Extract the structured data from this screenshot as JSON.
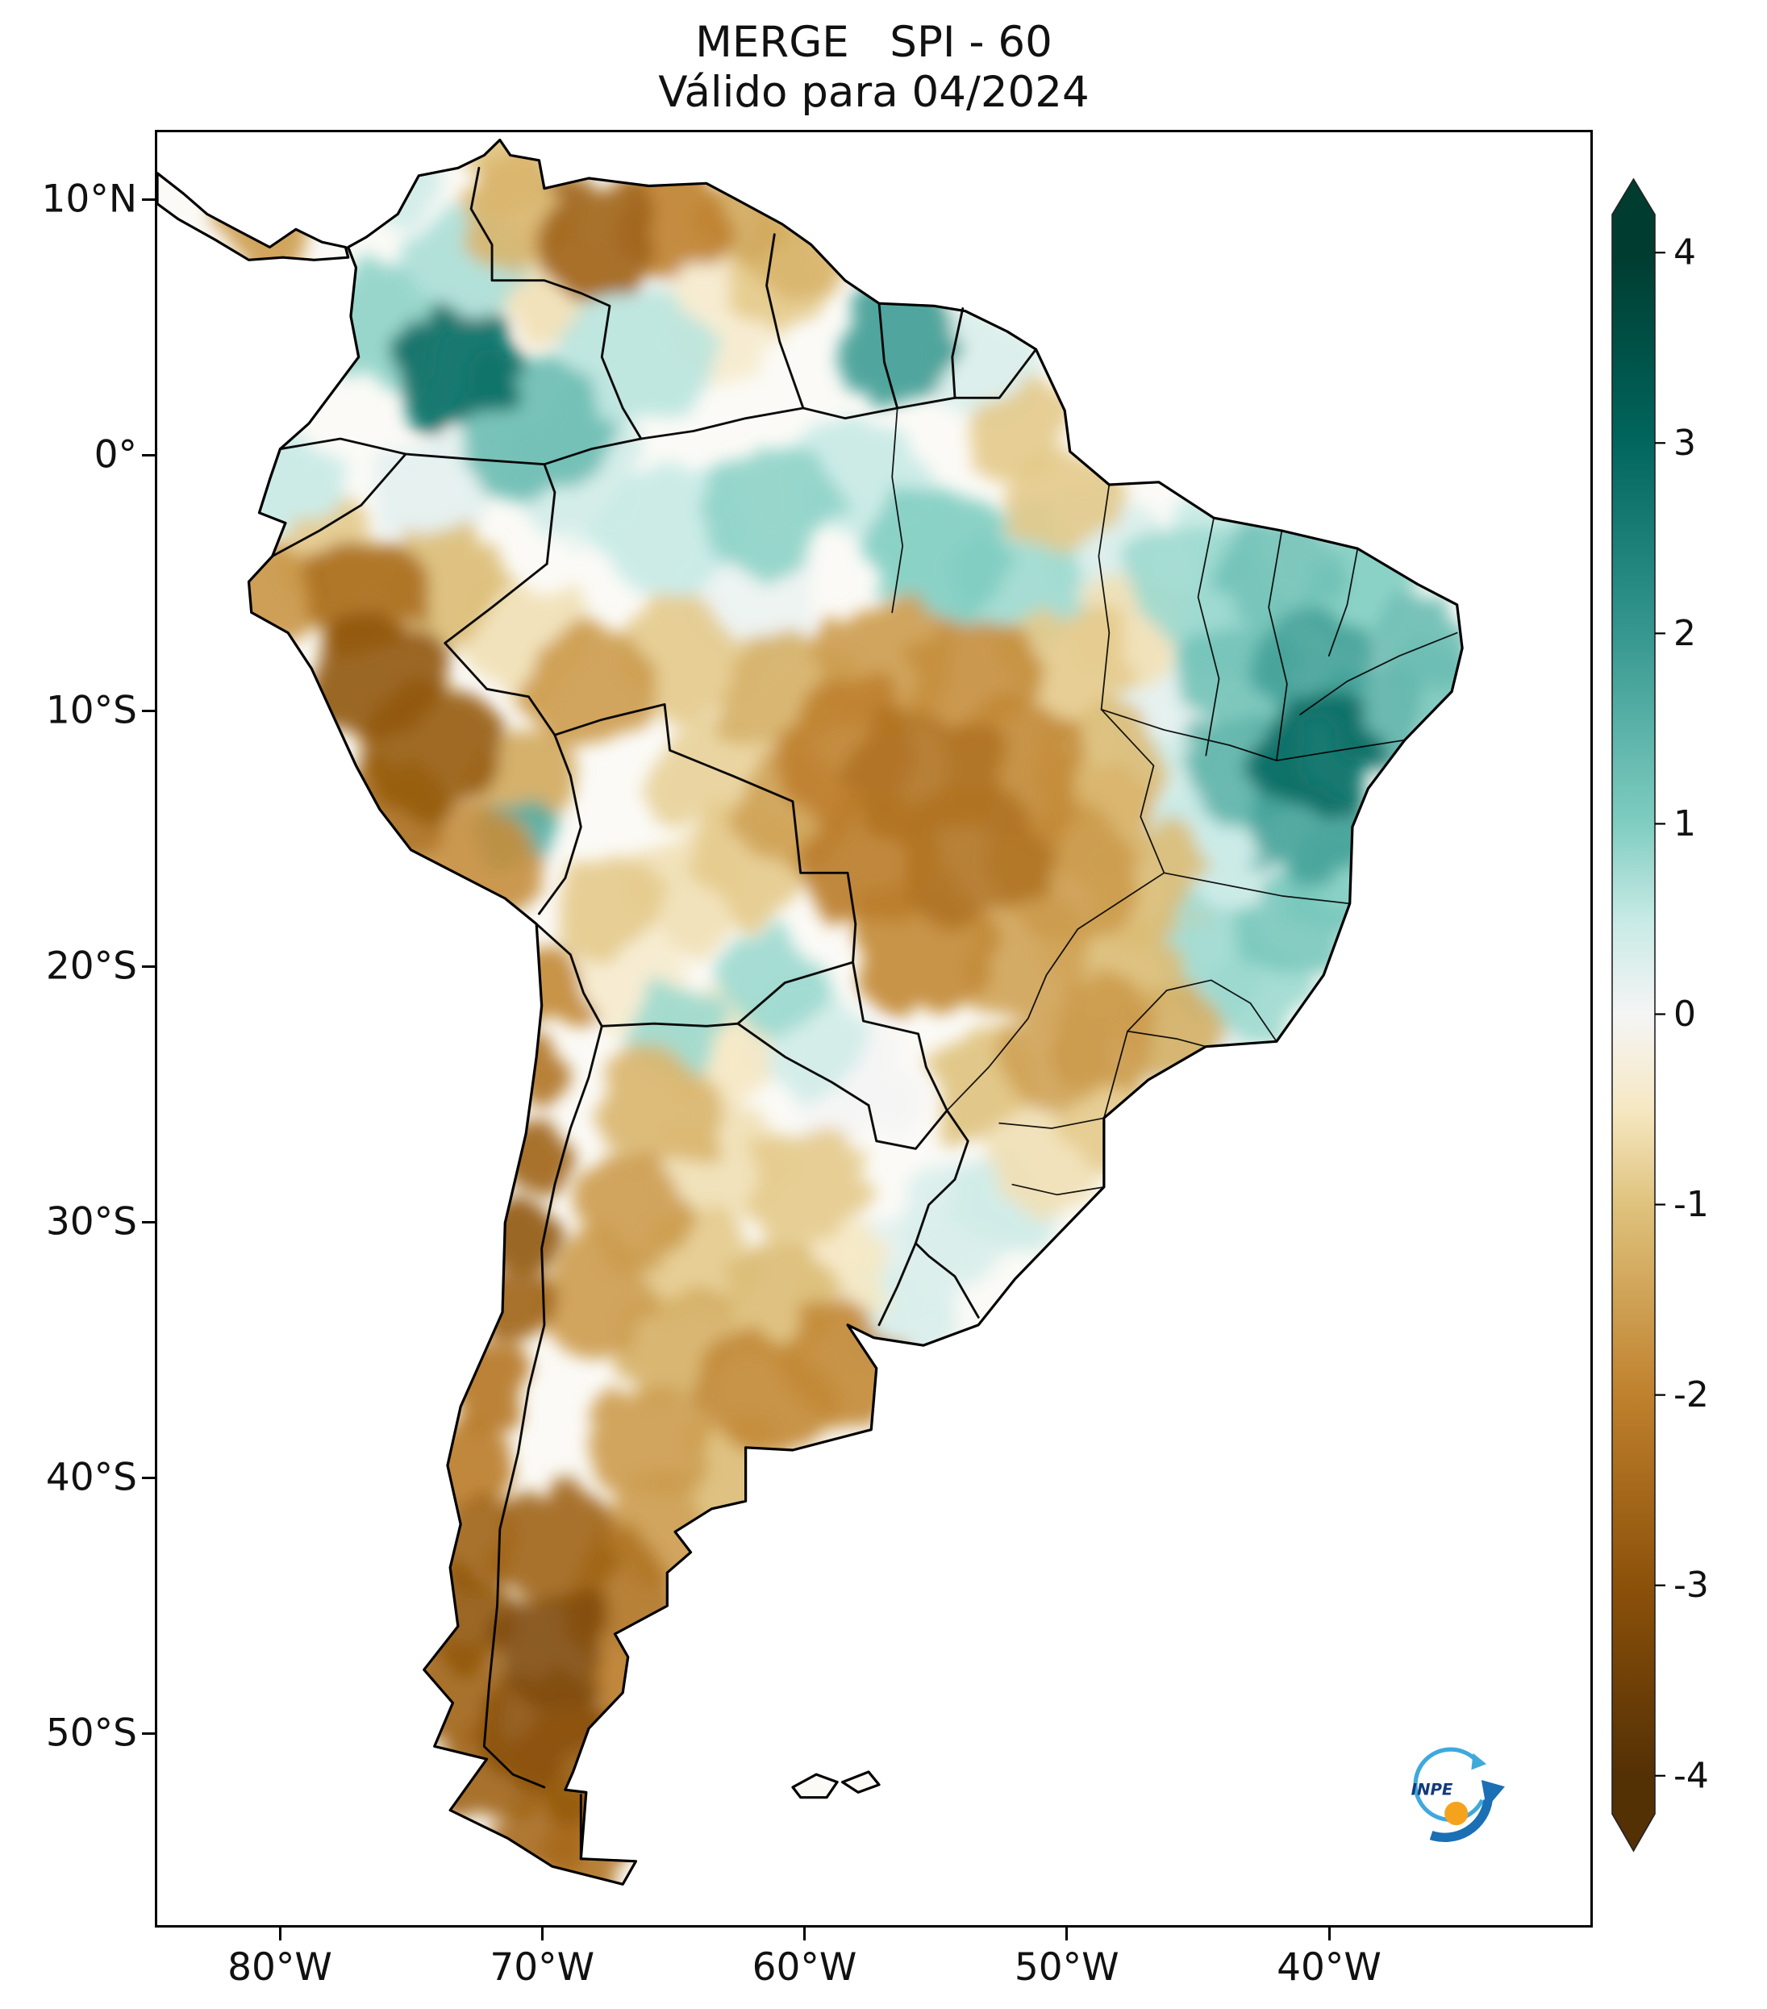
{
  "figure": {
    "background": "#ffffff"
  },
  "title": {
    "line1": "MERGE   SPI - 60",
    "line2": "Válido para 04/2024"
  },
  "axes": {
    "lat_ticks": [
      "10°N",
      "0°",
      "10°S",
      "20°S",
      "30°S",
      "40°S",
      "50°S"
    ],
    "lon_ticks": [
      "80°W",
      "70°W",
      "60°W",
      "50°W",
      "40°W"
    ]
  },
  "colorbar": {
    "tick_labels": [
      "4",
      "3",
      "2",
      "1",
      "0",
      "-1",
      "-2",
      "-3",
      "-4"
    ],
    "range_min": -4,
    "range_max": 4
  },
  "logo": {
    "text": "INPE",
    "ring_color": "#3fa9dc",
    "arrow_color": "#1b6fb5",
    "dot_color": "#f5a31d",
    "text_color": "#123a7d"
  },
  "chart_data": {
    "type": "heatmap",
    "title": "MERGE   SPI - 60",
    "subtitle": "Válido para 04/2024",
    "variable": "SPI-60",
    "valid_for": "04/2024",
    "region": "South America",
    "lon_range": [
      -84.8,
      -30.0
    ],
    "lat_range": [
      -57.5,
      12.7
    ],
    "grid": false,
    "legend_position": "right-colorbar",
    "colormap": {
      "name": "BrBG",
      "stops": [
        {
          "v": -4,
          "c": "#543005"
        },
        {
          "v": -3,
          "c": "#8c510a"
        },
        {
          "v": -2,
          "c": "#bf812d"
        },
        {
          "v": -1,
          "c": "#dfc27d"
        },
        {
          "v": -0.5,
          "c": "#f6e8c3"
        },
        {
          "v": 0,
          "c": "#f5f5f5"
        },
        {
          "v": 0.5,
          "c": "#c7eae5"
        },
        {
          "v": 1,
          "c": "#80cdc1"
        },
        {
          "v": 2,
          "c": "#35978f"
        },
        {
          "v": 3,
          "c": "#01665e"
        },
        {
          "v": 4,
          "c": "#003c30"
        }
      ]
    },
    "points": [
      [
        -80.6,
        9.2,
        -1.6,
        1.8
      ],
      [
        -76,
        10.8,
        0.4,
        2
      ],
      [
        -71.5,
        11.3,
        -1,
        1.8
      ],
      [
        -71,
        9.7,
        -1.2,
        2.2
      ],
      [
        -68,
        8.7,
        -2.6,
        2.4
      ],
      [
        -65,
        8.9,
        -2,
        2.2
      ],
      [
        -62.5,
        9.3,
        -1.4,
        2
      ],
      [
        -60,
        8,
        -1.2,
        2
      ],
      [
        -69.5,
        6.8,
        -0.6,
        2.4
      ],
      [
        -73,
        7.5,
        0.7,
        2.2
      ],
      [
        -76.5,
        5,
        0.9,
        2.4
      ],
      [
        -73.5,
        3.5,
        2.9,
        2.4
      ],
      [
        -70.5,
        1.2,
        1.3,
        2.8
      ],
      [
        -66.5,
        3.8,
        0.6,
        2.8
      ],
      [
        -63,
        5.5,
        -0.4,
        2.4
      ],
      [
        -61,
        6.8,
        -0.9,
        2
      ],
      [
        -56.5,
        4.5,
        1.9,
        2.4
      ],
      [
        -53,
        3.7,
        0.3,
        2.2
      ],
      [
        -51.8,
        0.8,
        -0.9,
        2
      ],
      [
        -50.3,
        -1.6,
        -0.9,
        2.2
      ],
      [
        -79.5,
        -1.2,
        0.5,
        2
      ],
      [
        -80.3,
        -5.3,
        -1.7,
        1.8
      ],
      [
        -78,
        -4.3,
        -0.9,
        2
      ],
      [
        -77,
        -5.5,
        -2.4,
        2.2
      ],
      [
        -76.3,
        -8.5,
        -2.9,
        2.6
      ],
      [
        -74.3,
        -11.5,
        -2.8,
        2.6
      ],
      [
        -75.8,
        -14,
        -2.4,
        2.2
      ],
      [
        -72.5,
        -16,
        -1.8,
        2.2
      ],
      [
        -71,
        -14.8,
        1.6,
        1.5
      ],
      [
        -70.8,
        -12.5,
        -1.4,
        2
      ],
      [
        -73.8,
        -5.2,
        -1.1,
        2.4
      ],
      [
        -70.8,
        -7,
        -0.6,
        2.4
      ],
      [
        -68.3,
        -9,
        -1.6,
        2.4
      ],
      [
        -64.8,
        -8,
        -0.9,
        2.4
      ],
      [
        -69,
        -0.5,
        0.4,
        2.6
      ],
      [
        -74.2,
        -1.5,
        0.2,
        2.4
      ],
      [
        -65,
        -3,
        0.5,
        2.8
      ],
      [
        -61.5,
        -2,
        0.9,
        2.6
      ],
      [
        -58,
        -0.8,
        0.5,
        2.4
      ],
      [
        -55,
        -3.8,
        1,
        2.6
      ],
      [
        -51.8,
        -4.6,
        0.8,
        2.4
      ],
      [
        -48.8,
        -3.6,
        0.3,
        2.2
      ],
      [
        -62,
        -5.8,
        0.1,
        2.8
      ],
      [
        -60.8,
        -9.2,
        -1.3,
        2.4
      ],
      [
        -58.5,
        -11.5,
        -2,
        2.6
      ],
      [
        -57,
        -8.2,
        -1.6,
        2.6
      ],
      [
        -53.6,
        -8.6,
        -1.8,
        2.6
      ],
      [
        -50,
        -8.2,
        -0.9,
        2.4
      ],
      [
        -47.6,
        -6.6,
        -0.6,
        2.2
      ],
      [
        -45.6,
        -5,
        0.8,
        2.4
      ],
      [
        -43.6,
        -6.6,
        0.6,
        2.2
      ],
      [
        -42,
        -4.4,
        1.2,
        2.2
      ],
      [
        -38.6,
        -5,
        1,
        2.2
      ],
      [
        -36.4,
        -7.4,
        1.3,
        1.9
      ],
      [
        -35.6,
        -9,
        1.1,
        1.7
      ],
      [
        -40.6,
        -8,
        1.8,
        2.3
      ],
      [
        -43.4,
        -8.6,
        1.2,
        2.3
      ],
      [
        -40.4,
        -11.6,
        2.9,
        2.4
      ],
      [
        -38.6,
        -10.2,
        1.5,
        1.9
      ],
      [
        -43,
        -12.2,
        1.5,
        2.3
      ],
      [
        -41,
        -14.6,
        1.8,
        2.3
      ],
      [
        -44.6,
        -15.6,
        0.5,
        2.3
      ],
      [
        -39.6,
        -16.6,
        1,
        2.1
      ],
      [
        -41.6,
        -18.6,
        1.1,
        1.9
      ],
      [
        -55.6,
        -12.6,
        -2.3,
        2.8
      ],
      [
        -52,
        -12.2,
        -1.9,
        2.7
      ],
      [
        -48.6,
        -12.2,
        -1.1,
        2.4
      ],
      [
        -57.6,
        -15.6,
        -2.1,
        2.7
      ],
      [
        -53.6,
        -15.6,
        -2.3,
        2.7
      ],
      [
        -50,
        -16.2,
        -1.6,
        2.7
      ],
      [
        -47,
        -16.8,
        -1.1,
        2.4
      ],
      [
        -55.6,
        -19.2,
        -1.9,
        2.7
      ],
      [
        -51.6,
        -19.6,
        -1.5,
        2.4
      ],
      [
        -48.2,
        -20.2,
        -1.1,
        2.4
      ],
      [
        -44.6,
        -19.6,
        0.8,
        2.3
      ],
      [
        -42.6,
        -21.2,
        0.8,
        2
      ],
      [
        -46.2,
        -22.6,
        -1.3,
        1.9
      ],
      [
        -48.6,
        -22.6,
        -1.6,
        2.1
      ],
      [
        -50.6,
        -23.6,
        -1.5,
        2.1
      ],
      [
        -53.2,
        -24.6,
        -1,
        2.1
      ],
      [
        -45.2,
        -23.4,
        0.2,
        1.8
      ],
      [
        -51.2,
        -27.6,
        -0.6,
        2.1
      ],
      [
        -52.2,
        -29.2,
        0.4,
        2
      ],
      [
        -54,
        -30,
        0.3,
        2.3
      ],
      [
        -55.8,
        -31.8,
        0.2,
        2.3
      ],
      [
        -56.6,
        -33.6,
        0.3,
        2.1
      ],
      [
        -58.6,
        -32.2,
        -0.5,
        2.1
      ],
      [
        -61.5,
        -20.5,
        0.8,
        2
      ],
      [
        -60,
        -22.8,
        0.4,
        2.3
      ],
      [
        -58,
        -24.6,
        0,
        2.3
      ],
      [
        -65,
        -22.5,
        0.8,
        1.8
      ],
      [
        -63.6,
        -23.2,
        -0.5,
        2.3
      ],
      [
        -65.6,
        -25.6,
        -1.2,
        2.3
      ],
      [
        -63,
        -27.6,
        -0.6,
        2.3
      ],
      [
        -60,
        -28.6,
        -0.9,
        2.3
      ],
      [
        -66.6,
        -29.6,
        -1.6,
        2.3
      ],
      [
        -64,
        -31.6,
        -0.9,
        2.3
      ],
      [
        -61,
        -33,
        -1.1,
        2.3
      ],
      [
        -58.6,
        -35.6,
        -1.9,
        2.3
      ],
      [
        -61.6,
        -36.6,
        -1.9,
        2.5
      ],
      [
        -65,
        -35,
        -1.3,
        2.3
      ],
      [
        -68,
        -33,
        -1.6,
        2.2
      ],
      [
        -66,
        -38.6,
        -1.6,
        2.3
      ],
      [
        -62.6,
        -39.6,
        -1.1,
        2.1
      ],
      [
        -67.6,
        -17.6,
        -0.9,
        2.1
      ],
      [
        -64.6,
        -17,
        -0.6,
        2.3
      ],
      [
        -62,
        -16,
        -0.9,
        2.4
      ],
      [
        -66.6,
        -20.6,
        -0.4,
        2.1
      ],
      [
        -69.8,
        -20.5,
        -1.9,
        1.4
      ],
      [
        -70.4,
        -24,
        -2.3,
        1.4
      ],
      [
        -70.3,
        -27.5,
        -2.6,
        1.4
      ],
      [
        -71,
        -30.5,
        -2.9,
        1.5
      ],
      [
        -71,
        -33.5,
        -2.6,
        1.5
      ],
      [
        -72.4,
        -36.5,
        -2.2,
        1.7
      ],
      [
        -72.8,
        -39.5,
        -2.1,
        1.7
      ],
      [
        -72.8,
        -42.5,
        -2.6,
        1.8
      ],
      [
        -73,
        -45.5,
        -2.9,
        1.9
      ],
      [
        -73.4,
        -48.5,
        -2.6,
        1.9
      ],
      [
        -72.4,
        -51.5,
        -2.6,
        1.9
      ],
      [
        -70,
        -53.5,
        -2.5,
        1.9
      ],
      [
        -68.5,
        -54.6,
        -2.3,
        1.9
      ],
      [
        -69.6,
        -42.6,
        -2.6,
        2.3
      ],
      [
        -67,
        -44.6,
        -2.3,
        2.3
      ],
      [
        -69.6,
        -46.6,
        -3.2,
        2.3
      ],
      [
        -70.4,
        -49.6,
        -3,
        2.3
      ],
      [
        -68.6,
        -51,
        -2.8,
        2.3
      ],
      [
        -66,
        -48.6,
        -2.1,
        2.1
      ],
      [
        -65.6,
        -42,
        -1.6,
        2.1
      ],
      [
        -44.2,
        -2.6,
        0.5,
        1.9
      ],
      [
        -48.4,
        -25.8,
        -0.9,
        1.9
      ],
      [
        -60.5,
        -13.8,
        -1.5,
        2.3
      ],
      [
        -63.5,
        -12.5,
        -0.8,
        2.3
      ],
      [
        -46.5,
        -10.5,
        0.2,
        2.3
      ],
      [
        -49,
        -14.5,
        -1.2,
        2.3
      ],
      [
        -46.8,
        -13,
        0.4,
        2
      ]
    ]
  }
}
